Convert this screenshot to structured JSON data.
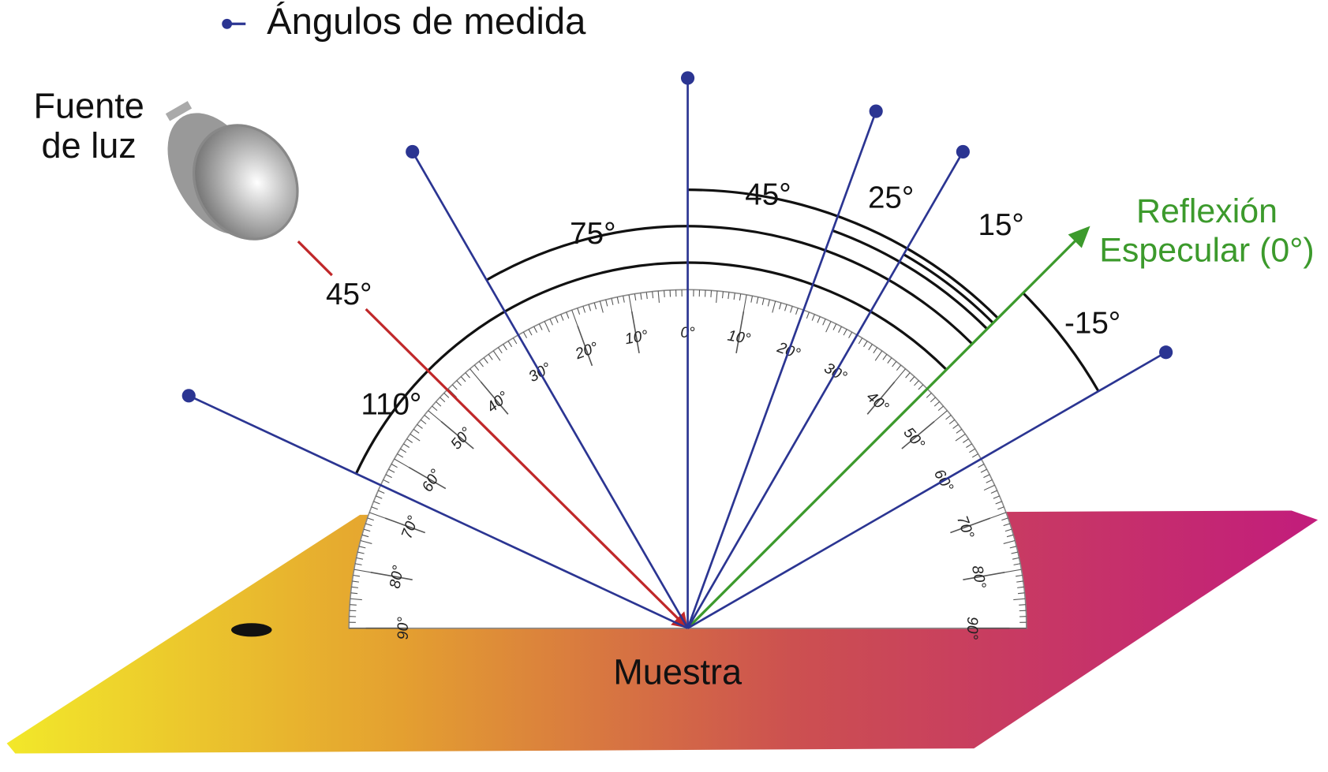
{
  "legend": {
    "label": "Ángulos de medida"
  },
  "light_source": {
    "lines": [
      "Fuente",
      "de luz"
    ]
  },
  "incidence_angle": "45°",
  "specular": {
    "lines": [
      "Reflexión",
      "Especular (0°)"
    ]
  },
  "aspecular_angles": [
    "45°",
    "25°",
    "15°",
    "75°",
    "110°",
    "-15°"
  ],
  "sample": "Muestra",
  "protractor": {
    "labels": [
      "0°",
      "10°",
      "20°",
      "30°",
      "40°",
      "50°",
      "60°",
      "70°",
      "80°",
      "90°"
    ]
  }
}
